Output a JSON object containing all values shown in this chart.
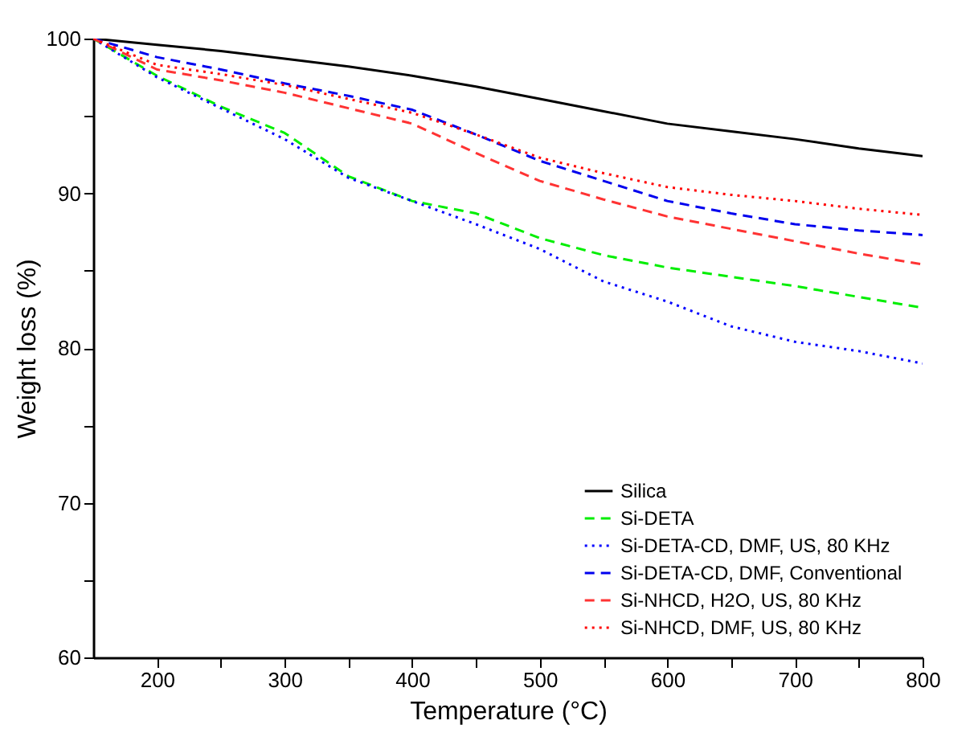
{
  "chart_data": {
    "type": "line",
    "xlabel": "Temperature (°C)",
    "ylabel": "Weight loss (%)",
    "xlim": [
      150,
      800
    ],
    "xticks": [
      200,
      {
        "value": 250,
        "label": null
      },
      300,
      {
        "value": 350,
        "label": null
      },
      400,
      {
        "value": 450,
        "label": null
      },
      500,
      {
        "value": 550,
        "label": null
      },
      600,
      {
        "value": 650,
        "label": null
      },
      700,
      {
        "value": 750,
        "label": null
      },
      800
    ],
    "ylim": [
      60,
      100
    ],
    "yticks": [
      60,
      {
        "value": 65,
        "label": null
      },
      70,
      {
        "value": 75,
        "label": null
      },
      80,
      {
        "value": 85,
        "label": null
      },
      90,
      {
        "value": 95,
        "label": null
      },
      100
    ],
    "grid": false,
    "legend": "bottom right",
    "marker": "none",
    "x": [
      150,
      200,
      250,
      300,
      350,
      400,
      450,
      500,
      550,
      600,
      650,
      700,
      750,
      800
    ],
    "series": [
      {
        "name": "Silica",
        "color": "#000000",
        "line_style": "solid",
        "values": [
          100,
          99.6,
          99.2,
          98.7,
          98.2,
          97.6,
          96.9,
          96.1,
          95.3,
          94.5,
          94.0,
          93.5,
          92.9,
          92.4
        ]
      },
      {
        "name": "Si-DETA",
        "color": "#00ee00",
        "line_style": "dashed",
        "values": [
          100,
          97.6,
          95.6,
          93.9,
          91.1,
          89.5,
          88.7,
          87.1,
          86.0,
          85.2,
          84.6,
          84.0,
          83.3,
          82.6
        ]
      },
      {
        "name": "Si-DETA-CD, DMF, US, 80 KHz",
        "color": "#0000ff",
        "line_style": "dotted",
        "values": [
          100,
          97.5,
          95.5,
          93.5,
          91.0,
          89.5,
          88.0,
          86.4,
          84.3,
          83.0,
          81.4,
          80.4,
          79.8,
          79.0
        ]
      },
      {
        "name": "Si-DETA-CD, DMF, Conventional",
        "color": "#0000ee",
        "line_style": "dashed",
        "values": [
          100,
          98.8,
          98.0,
          97.1,
          96.3,
          95.4,
          93.8,
          92.1,
          90.8,
          89.5,
          88.7,
          88.0,
          87.6,
          87.3
        ]
      },
      {
        "name": "Si-NHCD, H2O, US, 80 KHz",
        "color": "#ff3333",
        "line_style": "dashed",
        "values": [
          100,
          98.0,
          97.3,
          96.5,
          95.5,
          94.5,
          92.6,
          90.8,
          89.6,
          88.5,
          87.7,
          86.9,
          86.1,
          85.4
        ]
      },
      {
        "name": "Si-NHCD, DMF, US, 80 KHz",
        "color": "#ff0000",
        "line_style": "dotted",
        "values": [
          100,
          98.3,
          97.7,
          97.0,
          96.1,
          95.2,
          93.8,
          92.3,
          91.3,
          90.4,
          89.9,
          89.5,
          89.0,
          88.6
        ]
      }
    ]
  }
}
